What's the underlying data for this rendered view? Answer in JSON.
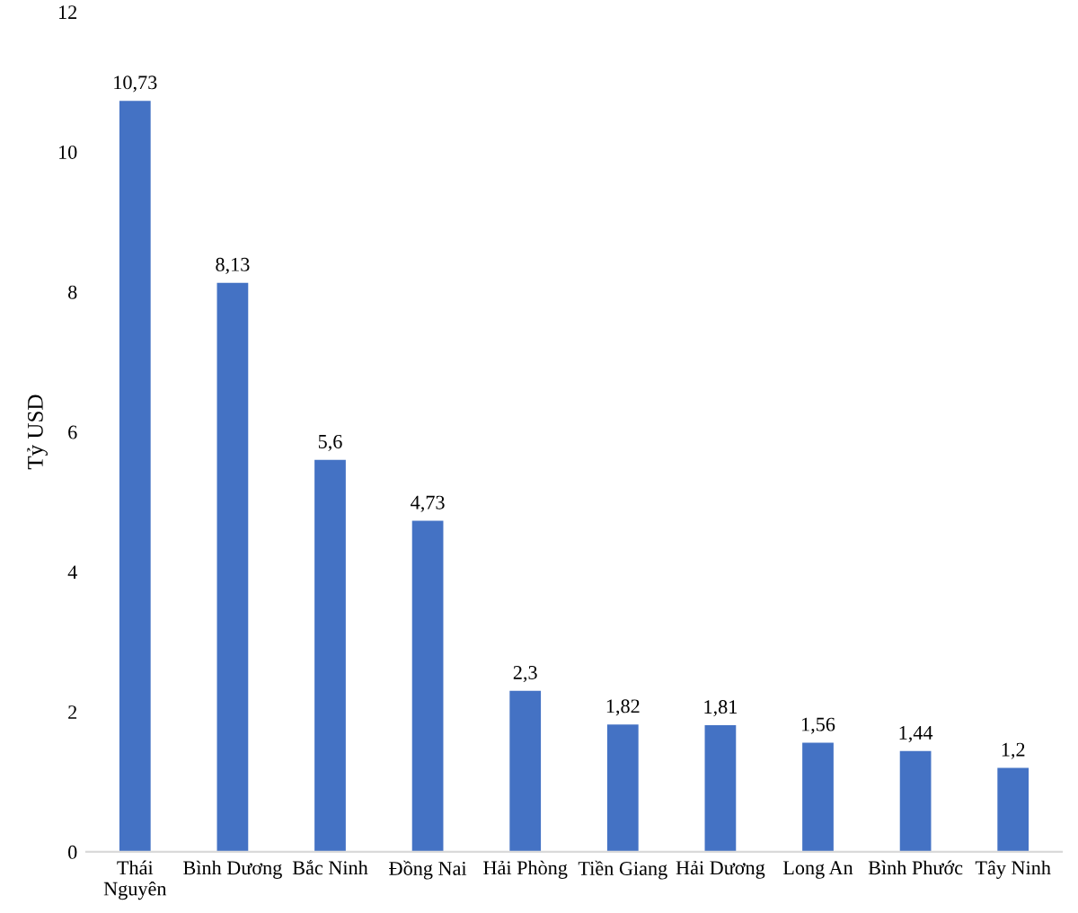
{
  "chart_data": {
    "type": "bar",
    "ylabel": "Tỷ USD",
    "categories": [
      "Thái\nNguyên",
      "Bình Dương",
      "Bắc Ninh",
      "Đồng Nai",
      "Hải Phòng",
      "Tiền Giang",
      "Hải Dương",
      "Long An",
      "Bình Phước",
      "Tây Ninh"
    ],
    "values": [
      10.73,
      8.13,
      5.6,
      4.73,
      2.3,
      1.82,
      1.81,
      1.56,
      1.44,
      1.2
    ],
    "value_labels": [
      "10,73",
      "8,13",
      "5,6",
      "4,73",
      "2,3",
      "1,82",
      "1,81",
      "1,56",
      "1,44",
      "1,2"
    ],
    "color": "#4472c4",
    "ylim": [
      0,
      12
    ],
    "yticks": [
      0,
      2,
      4,
      6,
      8,
      10,
      12
    ],
    "grid": false,
    "legend": false
  }
}
